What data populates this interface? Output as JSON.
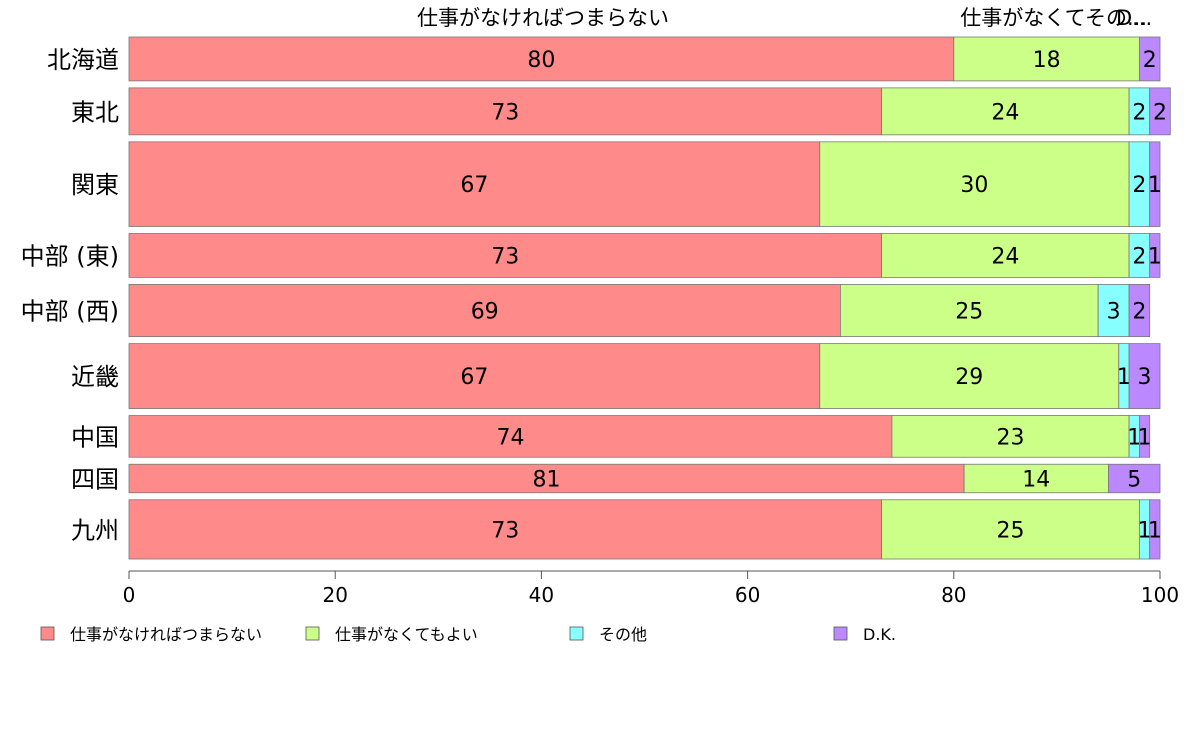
{
  "chart_data": {
    "type": "bar",
    "orientation": "horizontal",
    "stacked": true,
    "categories": [
      "北海道",
      "東北",
      "関東",
      "中部 (東)",
      "中部 (西)",
      "近畿",
      "中国",
      "四国",
      "九州"
    ],
    "series": [
      {
        "name": "仕事がなければつまらない",
        "color": "#ff8a8a",
        "values": [
          80,
          73,
          67,
          73,
          69,
          67,
          74,
          81,
          73
        ]
      },
      {
        "name": "仕事がなくてもよい",
        "color": "#ccff88",
        "values": [
          18,
          24,
          30,
          24,
          25,
          29,
          23,
          14,
          25
        ]
      },
      {
        "name": "その他",
        "color": "#88ffff",
        "values": [
          0,
          2,
          2,
          2,
          3,
          1,
          1,
          0,
          1
        ]
      },
      {
        "name": "D.K.",
        "color": "#bb88ff",
        "values": [
          2,
          2,
          1,
          1,
          2,
          3,
          1,
          5,
          1
        ]
      }
    ],
    "row_weights": [
      1,
      1.07,
      1.93,
      1,
      1.19,
      1.48,
      0.95,
      0.65,
      1.35
    ],
    "top_labels": [
      "仕事がなければつまらない",
      "仕事がなくてその...",
      "D..."
    ],
    "xlim": [
      0,
      100
    ],
    "xticks": [
      0,
      20,
      40,
      60,
      80,
      100
    ],
    "legend_position": "bottom",
    "grid": false
  }
}
